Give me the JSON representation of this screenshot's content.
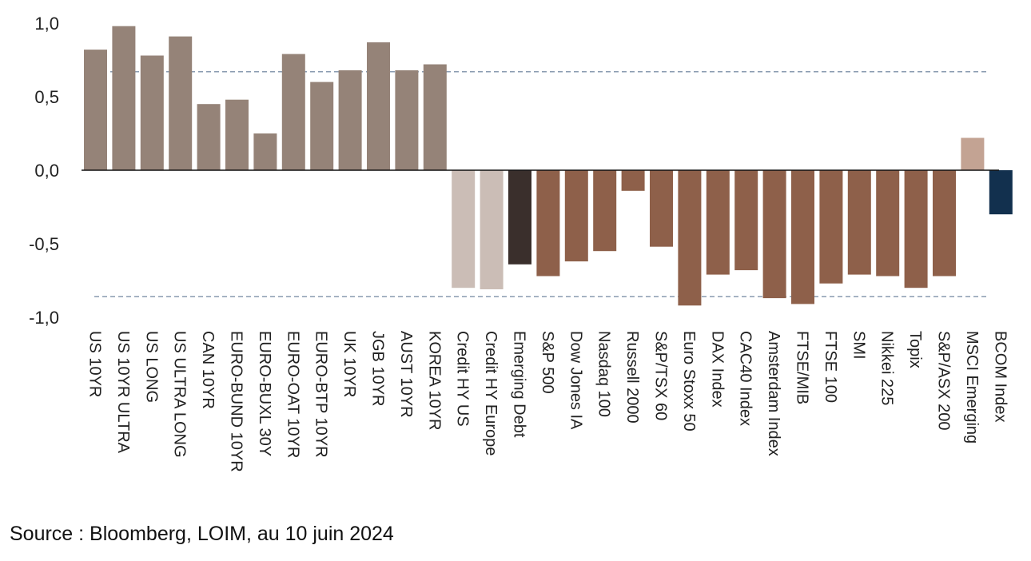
{
  "chart_data": {
    "type": "bar",
    "categories": [
      "US 10YR",
      "US 10YR ULTRA",
      "US LONG",
      "US ULTRA LONG",
      "CAN 10YR",
      "EURO-BUND 10YR",
      "EURO-BUXL 30Y",
      "EURO-OAT 10YR",
      "EURO-BTP 10YR",
      "UK 10YR",
      "JGB 10YR",
      "AUST 10YR",
      "KOREA 10YR",
      "Credit HY US",
      "Credit HY Europe",
      "Emerging Debt",
      "S&P 500",
      "Dow Jones IA",
      "Nasdaq 100",
      "Russell 2000",
      "S&P/TSX 60",
      "Euro Stoxx 50",
      "DAX Index",
      "CAC40 Index",
      "Amsterdam Index",
      "FTSE/MIB",
      "FTSE 100",
      "SMI",
      "Nikkei 225",
      "Topix",
      "S&P/ASX 200",
      "MSCI Emerging",
      "BCOM Index"
    ],
    "values": [
      0.82,
      0.98,
      0.78,
      0.91,
      0.45,
      0.48,
      0.25,
      0.79,
      0.6,
      0.68,
      0.87,
      0.68,
      0.72,
      -0.8,
      -0.81,
      -0.64,
      -0.72,
      -0.62,
      -0.55,
      -0.14,
      -0.52,
      -0.92,
      -0.71,
      -0.68,
      -0.87,
      -0.91,
      -0.77,
      -0.71,
      -0.72,
      -0.8,
      -0.72,
      0.22,
      -0.3
    ],
    "colors": [
      "#958378",
      "#958378",
      "#958378",
      "#958378",
      "#958378",
      "#958378",
      "#958378",
      "#958378",
      "#958378",
      "#958378",
      "#958378",
      "#958378",
      "#958378",
      "#cbbdb6",
      "#cbbdb6",
      "#3a2f2c",
      "#8e604a",
      "#8e604a",
      "#8e604a",
      "#8e604a",
      "#8e604a",
      "#8e604a",
      "#8e604a",
      "#8e604a",
      "#8e604a",
      "#8e604a",
      "#8e604a",
      "#8e604a",
      "#8e604a",
      "#8e604a",
      "#8e604a",
      "#c3a393",
      "#12304e"
    ],
    "yticks": [
      1.0,
      0.5,
      0.0,
      -0.5,
      -1.0
    ],
    "ytick_labels": [
      "1,0",
      "0,5",
      "0,0",
      "-0,5",
      "-1,0"
    ],
    "reference_lines": [
      0.67,
      -0.86
    ],
    "ylim": [
      -1.0,
      1.0
    ],
    "title": "",
    "xlabel": "",
    "ylabel": ""
  },
  "source": "Source : Bloomberg, LOIM, au 10 juin 2024"
}
